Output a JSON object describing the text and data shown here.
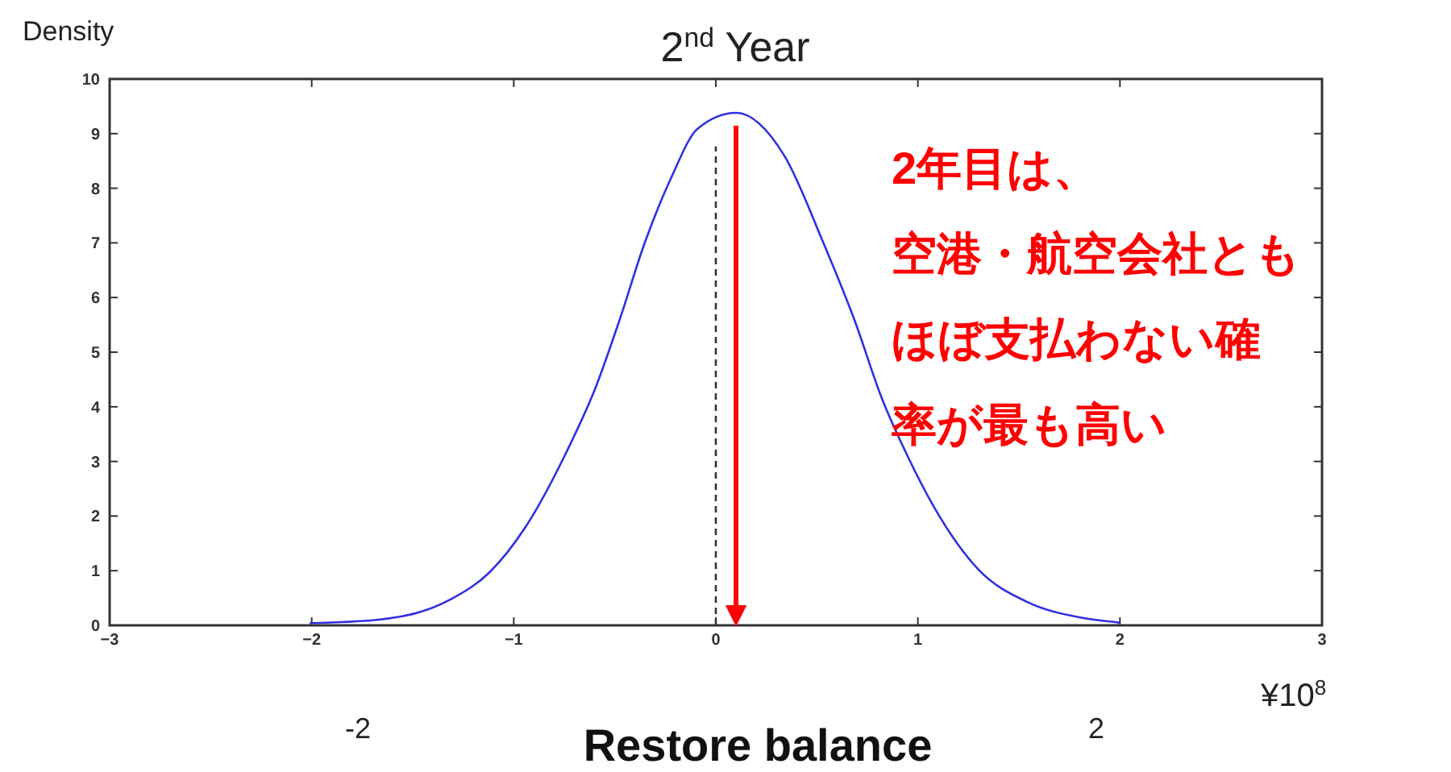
{
  "chart_data": {
    "type": "line",
    "title": "2$^{nd}$ Year",
    "ylabel": "Density",
    "xlabel": "Restore balance",
    "annotations": [
      "2年目は、空港・航空会社ともほぼ支払わない確率が最も高い",
      "¥10$^{8}$",
      "-2",
      "2"
    ],
    "series": [
      {
        "color": "#3030e0",
        "x": [
          -2.01,
          -1.68,
          -1.31,
          -1.12,
          -0.94,
          -0.75,
          -0.59,
          -0.48,
          -0.35,
          -0.22,
          -0.09,
          0.1,
          0.34,
          0.53,
          0.69,
          0.82,
          0.95,
          1.09,
          1.3,
          1.54,
          1.81,
          2.0
        ],
        "values": [
          0.04,
          0.1,
          0.48,
          0.97,
          1.81,
          3.09,
          4.4,
          5.55,
          7.02,
          8.2,
          9.09,
          9.38,
          8.59,
          7.02,
          5.55,
          4.17,
          3.09,
          2.1,
          1.02,
          0.43,
          0.14,
          0.05
        ]
      }
    ],
    "xlim": [
      -3,
      3
    ],
    "xticks": [
      -3,
      -2,
      -1,
      0,
      1,
      2,
      3
    ],
    "ylim": [
      0,
      10
    ],
    "yticks": [
      0,
      1,
      2,
      3,
      4,
      5,
      6,
      7,
      8,
      9,
      10
    ],
    "ref_lines": [
      {
        "axis": "x",
        "value": 0,
        "color": "#333333",
        "line_style": "dashed"
      },
      {
        "axis": "x",
        "value": 0.1,
        "color": "#ff0000",
        "line_style": "solid"
      }
    ],
    "grid": false,
    "marker": "none",
    "line_style": "solid"
  }
}
